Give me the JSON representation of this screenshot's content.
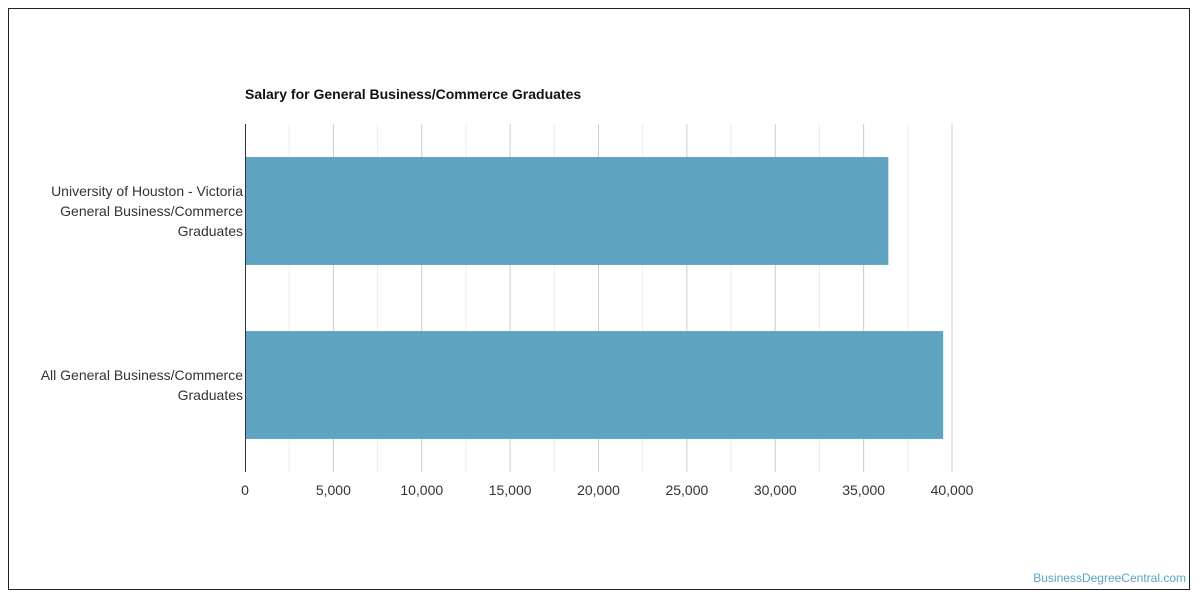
{
  "chart_data": {
    "type": "bar",
    "orientation": "horizontal",
    "title": "Salary for General Business/Commerce Graduates",
    "categories": [
      "University of Houston - Victoria\nGeneral Business/Commerce\nGraduates",
      "All General Business/Commerce\nGraduates"
    ],
    "values": [
      36400,
      39500
    ],
    "xlim": [
      0,
      40000
    ],
    "xticks": [
      0,
      5000,
      10000,
      15000,
      20000,
      25000,
      30000,
      35000,
      40000
    ],
    "tick_labels": [
      "0",
      "5,000",
      "10,000",
      "15,000",
      "20,000",
      "25,000",
      "30,000",
      "35,000",
      "40,000"
    ],
    "grid": true,
    "legend": "none",
    "bar_color": "#5ea3c0"
  },
  "watermark": "BusinessDegreeCentral.com"
}
